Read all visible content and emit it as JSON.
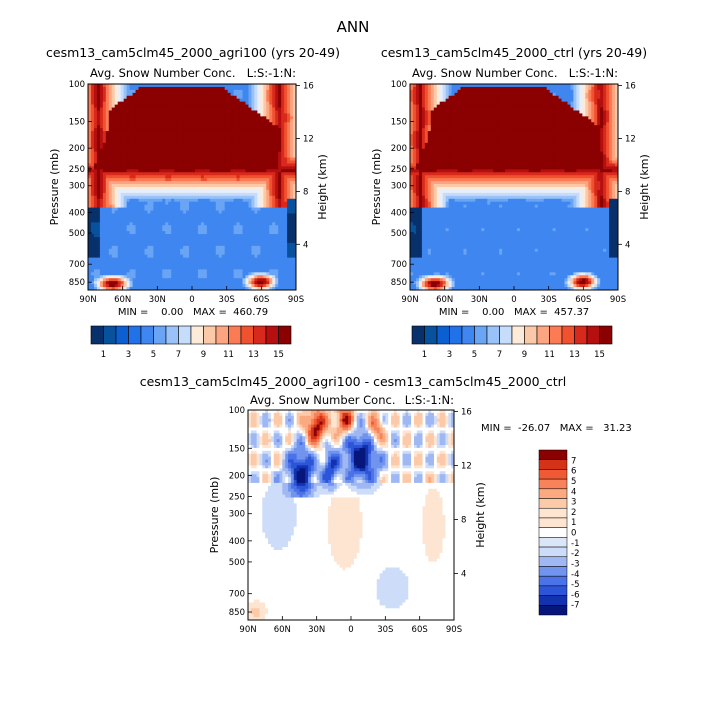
{
  "title": "ANN",
  "colors": {
    "blue_scale": [
      "#08306b",
      "#08519c",
      "#0b5fd0",
      "#2171e8",
      "#3f86f0",
      "#6aa5f5",
      "#98c2f8",
      "#c6dcfb",
      "#e8eefa"
    ],
    "red_scale": [
      "#fdebd9",
      "#fcc9a8",
      "#fca580",
      "#fb7b55",
      "#f0512f",
      "#d82a1c",
      "#b50f10",
      "#8b0000"
    ],
    "diff_neg": [
      "#06167a",
      "#1232b0",
      "#2d55d8",
      "#4b72e6",
      "#7194ee",
      "#9fb8f4",
      "#cddcf8"
    ],
    "diff_pos": [
      "#fde5d2",
      "#fcc9a9",
      "#fba981",
      "#f8825a",
      "#ef5a35",
      "#d43318",
      "#8b0000"
    ]
  },
  "chart_data": [
    {
      "type": "heatmap",
      "title": "cesm13_cam5clm45_2000_agri100 (yrs 20-49)",
      "subtitle": "Avg. Snow Number Conc.",
      "units": "L:S:-1:N:",
      "xlabel": "",
      "ylabel": "Pressure (mb)",
      "ylabel_right": "Height (km)",
      "x_ticks": [
        "90N",
        "60N",
        "30N",
        "0",
        "30S",
        "60S",
        "90S"
      ],
      "y_ticks": [
        "100",
        "150",
        "200",
        "250",
        "300",
        "400",
        "500",
        "700",
        "850"
      ],
      "y_ticks_right": [
        "16",
        "12",
        "8",
        "4"
      ],
      "stats": "MIN =    0.00   MAX =  460.79",
      "colorbar_labels": [
        "1",
        "3",
        "5",
        "7",
        "9",
        "11",
        "13",
        "15"
      ],
      "colorbar_levels": 16
    },
    {
      "type": "heatmap",
      "title": "cesm13_cam5clm45_2000_ctrl (yrs 20-49)",
      "subtitle": "Avg. Snow Number Conc.",
      "units": "L:S:-1:N:",
      "xlabel": "",
      "ylabel": "Pressure (mb)",
      "ylabel_right": "Height (km)",
      "x_ticks": [
        "90N",
        "60N",
        "30N",
        "0",
        "30S",
        "60S",
        "90S"
      ],
      "y_ticks": [
        "100",
        "150",
        "200",
        "250",
        "300",
        "400",
        "500",
        "700",
        "850"
      ],
      "y_ticks_right": [
        "16",
        "12",
        "8",
        "4"
      ],
      "stats": "MIN =    0.00   MAX =  457.37",
      "colorbar_labels": [
        "1",
        "3",
        "5",
        "7",
        "9",
        "11",
        "13",
        "15"
      ],
      "colorbar_levels": 16
    },
    {
      "type": "heatmap",
      "title": "cesm13_cam5clm45_2000_agri100 - cesm13_cam5clm45_2000_ctrl",
      "subtitle": "Avg. Snow Number Conc.",
      "units": "L:S:-1:N:",
      "xlabel": "",
      "ylabel": "Pressure (mb)",
      "ylabel_right": "Height (km)",
      "x_ticks": [
        "90N",
        "60N",
        "30N",
        "0",
        "30S",
        "60S",
        "90S"
      ],
      "y_ticks": [
        "100",
        "150",
        "200",
        "250",
        "300",
        "400",
        "500",
        "700",
        "850"
      ],
      "y_ticks_right": [
        "16",
        "12",
        "8",
        "4"
      ],
      "stats": "MIN =  -26.07   MAX =   31.23",
      "colorbar_labels": [
        "7",
        "6",
        "5",
        "4",
        "3",
        "2",
        "1",
        "0",
        "-1",
        "-2",
        "-3",
        "-4",
        "-5",
        "-6",
        "-7"
      ]
    }
  ]
}
